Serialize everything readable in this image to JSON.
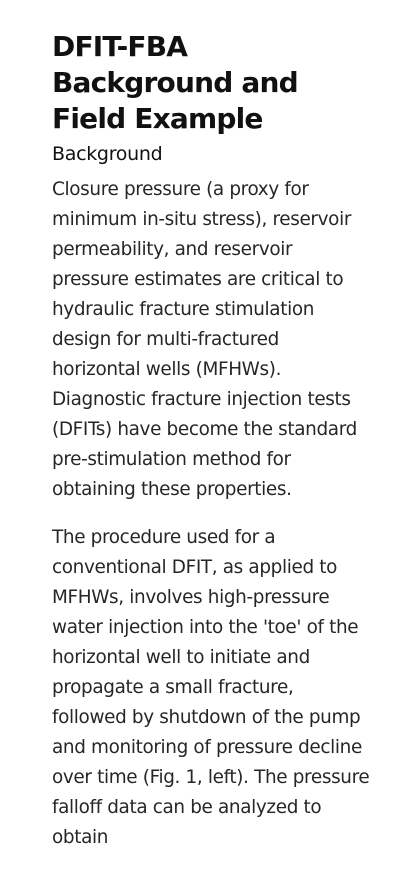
{
  "article": {
    "title": "DFIT-FBA Background and Field Example",
    "section_heading": "Background",
    "paragraphs": [
      "Closure pressure (a proxy for minimum in-situ stress), reservoir permeability, and reservoir pressure estimates are critical to hydraulic fracture stimulation design for multi-fractured horizontal wells (MFHWs). Diagnostic fracture injection tests (DFITs) have become the standard pre-stimulation method for obtaining these properties.",
      "The procedure used for a conventional DFIT, as applied to MFHWs, involves high-pressure water injection into the 'toe' of the horizontal well to initiate and propagate a small fracture, followed by shutdown of the pump and monitoring of pressure decline over time (Fig. 1, left). The pressure falloff data can be analyzed to obtain"
    ]
  }
}
